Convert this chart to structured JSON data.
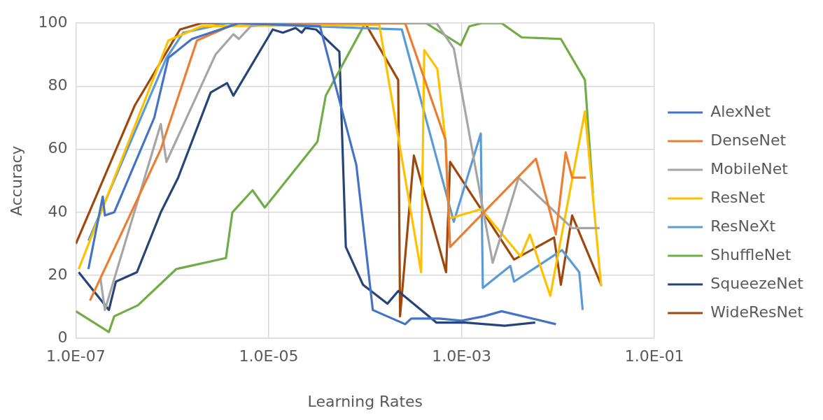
{
  "chart_data": {
    "type": "line",
    "xlabel": "Learning Rates",
    "ylabel": "Accuracy",
    "log": "x",
    "grid": true,
    "legend": "right",
    "marker": "none",
    "line_style": "solid",
    "xlim": [
      1e-07,
      0.1
    ],
    "xticks": [
      {
        "value": 1e-07,
        "label": "1.0E-07"
      },
      {
        "value": 1e-05,
        "label": "1.0E-05"
      },
      {
        "value": 0.001,
        "label": "1.0E-03"
      },
      {
        "value": 0.1,
        "label": "1.0E-01"
      }
    ],
    "ylim": [
      0,
      100
    ],
    "yticks": [
      0,
      20,
      40,
      60,
      80,
      100
    ],
    "series": [
      {
        "name": "AlexNet",
        "color": "#4472c4",
        "x": [
          1.35e-07,
          1.9e-07,
          2e-07,
          2.5e-07,
          6.5e-07,
          9.1e-07,
          1.6e-06,
          4.9e-06,
          3.4e-05,
          8.1e-05,
          0.00012,
          0.00026,
          0.0003,
          0.00059,
          0.001,
          0.0017,
          0.0026,
          0.0095
        ],
        "values": [
          22,
          45,
          39,
          40,
          70,
          89,
          95,
          100,
          99,
          55,
          9,
          4.5,
          6.3,
          6.3,
          5.6,
          7,
          8.6,
          4.5
        ]
      },
      {
        "name": "DenseNet",
        "color": "#ed7d31",
        "x": [
          1.4e-07,
          7.6e-07,
          1.8e-06,
          4.6e-06,
          0.00026,
          0.00068,
          0.00076,
          0.0059,
          0.0095,
          0.012,
          0.014,
          0.0195
        ],
        "values": [
          12,
          60,
          94.5,
          100,
          100,
          63,
          29,
          57,
          33,
          59,
          51,
          51
        ]
      },
      {
        "name": "MobileNet",
        "color": "#a5a5a5",
        "x": [
          1.8e-07,
          2e-07,
          7.6e-07,
          8.7e-07,
          2.8e-06,
          4.3e-06,
          4.9e-06,
          6.5e-06,
          1e-05,
          0.00055,
          0.00083,
          0.0021,
          0.0039,
          0.014,
          0.027
        ],
        "values": [
          19,
          9,
          68,
          56,
          90,
          96.5,
          95,
          99,
          100,
          100,
          92,
          24,
          51,
          35,
          35
        ]
      },
      {
        "name": "ResNet",
        "color": "#ffc000",
        "x": [
          1.07e-07,
          9.1e-07,
          2e-06,
          0.00014,
          0.00038,
          0.00041,
          0.00056,
          0.00068,
          0.00074,
          0.0016,
          0.0041,
          0.0051,
          0.0083,
          0.019,
          0.023,
          0.028
        ],
        "values": [
          22,
          94.5,
          99,
          99.5,
          21,
          91.5,
          85.5,
          63,
          38,
          41,
          26,
          33,
          13.5,
          72,
          45,
          16.5
        ]
      },
      {
        "name": "ResNeXt",
        "color": "#5b9bd5",
        "x": [
          1.35e-07,
          8.7e-07,
          1.3e-06,
          3.7e-06,
          0.00024,
          0.00083,
          0.00158,
          0.00166,
          0.0032,
          0.0035,
          0.011,
          0.0166,
          0.018
        ],
        "values": [
          31,
          89,
          97,
          100,
          98,
          37,
          65,
          16,
          23,
          18,
          28,
          21,
          9
        ]
      },
      {
        "name": "ShuffleNet",
        "color": "#70ad47",
        "x": [
          1e-07,
          2.2e-07,
          2.5e-07,
          4.4e-07,
          1.1e-06,
          3.6e-06,
          4.2e-06,
          6.8e-06,
          9.1e-06,
          3.2e-05,
          3.9e-05,
          0.0001,
          0.00043,
          0.00098,
          0.0012,
          0.0016,
          0.0026,
          0.0042,
          0.0107,
          0.019,
          0.023
        ],
        "values": [
          8.6,
          2,
          7,
          10.5,
          22,
          25.5,
          40,
          47,
          41.5,
          62.4,
          77,
          100,
          100,
          93,
          99,
          100,
          100,
          95.5,
          95,
          82,
          46
        ]
      },
      {
        "name": "SqueezeNet",
        "color": "#264478",
        "x": [
          1.07e-07,
          2.2e-07,
          2.6e-07,
          4.3e-07,
          7.6e-07,
          1.15e-06,
          2.5e-06,
          3.7e-06,
          4.3e-06,
          1.1e-05,
          1.4e-05,
          1.9e-05,
          2.2e-05,
          2.4e-05,
          3.1e-05,
          5.4e-05,
          6.3e-05,
          9.5e-05,
          0.00017,
          0.00022,
          0.00055,
          0.0011,
          0.0028,
          0.0058
        ],
        "values": [
          21,
          9,
          18,
          21,
          40,
          51,
          78,
          81,
          77,
          98,
          97,
          98.5,
          97,
          98.5,
          98,
          91,
          29,
          17,
          11,
          15,
          5,
          5,
          4,
          5
        ]
      },
      {
        "name": "WideResNet",
        "color": "#9e480e",
        "x": [
          1e-07,
          4.1e-07,
          1.2e-06,
          2e-06,
          0.0001,
          0.00022,
          0.00023,
          0.00032,
          0.00069,
          0.00076,
          0.0035,
          0.0091,
          0.0107,
          0.014,
          0.028
        ],
        "values": [
          30,
          74,
          98,
          100,
          100,
          82,
          7,
          58,
          21,
          56,
          25,
          32,
          17,
          39,
          17
        ]
      }
    ]
  }
}
